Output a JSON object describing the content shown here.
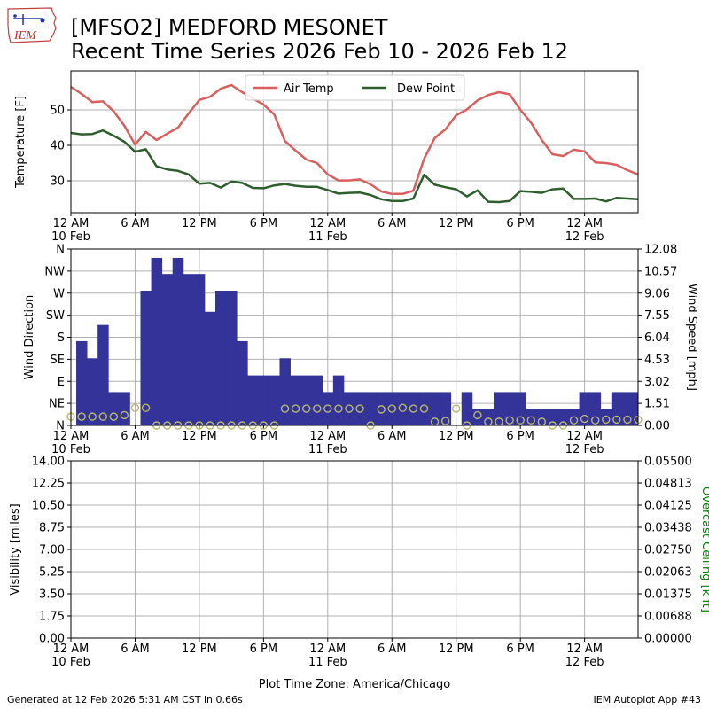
{
  "header": {
    "title_line1": "[MFSO2] MEDFORD MESONET",
    "title_line2": "Recent Time Series 2026 Feb 10 - 2026 Feb 12",
    "logo_text": "IEM"
  },
  "footer": {
    "generated": "Generated at 12 Feb 2026 5:31 AM CST in 0.66s",
    "app": "IEM Autoplot App #43"
  },
  "colors": {
    "air_temp": "#d95f5f",
    "dew_point": "#2e5e2e",
    "wind_dir": "#333399",
    "wind_speed_marker": "#b8b86a",
    "ceiling_axis": "#008000",
    "grid": "#b0b0b0"
  },
  "chart_data": [
    {
      "type": "line",
      "x_unit": "hours since 12 AM 10 Feb",
      "xlim": [
        0,
        53
      ],
      "x_ticks": [
        0,
        6,
        12,
        18,
        24,
        30,
        36,
        42,
        48
      ],
      "x_tick_labels": [
        {
          "line1": "12 AM",
          "line2": "10 Feb"
        },
        {
          "line1": "6 AM",
          "line2": ""
        },
        {
          "line1": "12 PM",
          "line2": ""
        },
        {
          "line1": "6 PM",
          "line2": ""
        },
        {
          "line1": "12 AM",
          "line2": "11 Feb"
        },
        {
          "line1": "6 AM",
          "line2": ""
        },
        {
          "line1": "12 PM",
          "line2": ""
        },
        {
          "line1": "6 PM",
          "line2": ""
        },
        {
          "line1": "12 AM",
          "line2": "12 Feb"
        }
      ],
      "ylabel": "Temperature [F]",
      "ylim": [
        21,
        61
      ],
      "y_ticks": [
        30,
        40,
        50
      ],
      "grid": true,
      "legend_placement": "top-center",
      "series": [
        {
          "name": "Air Temp",
          "color_key": "air_temp",
          "x": [
            0,
            1,
            2,
            3,
            4,
            5,
            6,
            7,
            8,
            9,
            10,
            11,
            12,
            13,
            14,
            15,
            16,
            17,
            18,
            19,
            20,
            21,
            22,
            23,
            24,
            25,
            26,
            27,
            28,
            29,
            30,
            31,
            32,
            33,
            34,
            35,
            36,
            37,
            38,
            39,
            40,
            41,
            42,
            43,
            44,
            45,
            46,
            47,
            48,
            49,
            50,
            51,
            52,
            53
          ],
          "values": [
            56.5,
            54.5,
            52.2,
            52.4,
            49.6,
            45.5,
            40.2,
            43.8,
            41.5,
            43.3,
            45.0,
            49.0,
            52.8,
            53.7,
            56.0,
            57.0,
            55.0,
            53.2,
            51.5,
            48.7,
            41.2,
            38.5,
            36.0,
            35.0,
            31.8,
            30.1,
            30.1,
            30.4,
            29.0,
            27.0,
            26.3,
            26.3,
            27.2,
            36.2,
            42.1,
            44.5,
            48.5,
            50.1,
            52.7,
            54.2,
            55.0,
            54.4,
            50.0,
            46.4,
            41.5,
            37.5,
            37.0,
            38.8,
            38.3,
            35.2,
            35.0,
            34.5,
            33.0,
            31.8
          ]
        },
        {
          "name": "Dew Point",
          "color_key": "dew_point",
          "x": [
            0,
            1,
            2,
            3,
            4,
            5,
            6,
            7,
            8,
            9,
            10,
            11,
            12,
            13,
            14,
            15,
            16,
            17,
            18,
            19,
            20,
            21,
            22,
            23,
            24,
            25,
            26,
            27,
            28,
            29,
            30,
            31,
            32,
            33,
            34,
            35,
            36,
            37,
            38,
            39,
            40,
            41,
            42,
            43,
            44,
            45,
            46,
            47,
            48,
            49,
            50,
            51,
            52,
            53
          ],
          "values": [
            43.5,
            43.1,
            43.2,
            44.2,
            42.7,
            41.0,
            38.2,
            38.9,
            34.1,
            33.2,
            32.8,
            31.8,
            29.2,
            29.4,
            28.1,
            29.8,
            29.4,
            28.0,
            27.9,
            28.7,
            29.1,
            28.6,
            28.3,
            28.3,
            27.4,
            26.4,
            26.6,
            26.7,
            26.0,
            24.8,
            24.3,
            24.3,
            25.0,
            31.7,
            28.9,
            28.2,
            27.6,
            25.6,
            27.3,
            24.1,
            24.0,
            24.3,
            27.1,
            26.9,
            26.6,
            27.6,
            27.8,
            24.9,
            24.9,
            25.0,
            24.2,
            25.2,
            25.0,
            24.8
          ]
        }
      ]
    },
    {
      "type": "bar",
      "x_unit": "hours since 12 AM 10 Feb",
      "xlim": [
        0,
        53
      ],
      "ylabel": "Wind Direction",
      "ylim": [
        0,
        360
      ],
      "y_tick_values": [
        0,
        45,
        90,
        135,
        180,
        225,
        270,
        315,
        360
      ],
      "y_tick_labels": [
        "N",
        "NE",
        "E",
        "SE",
        "S",
        "SW",
        "W",
        "NW",
        "N"
      ],
      "y2label": "Wind Speed [mph]",
      "y2lim": [
        0,
        12.08
      ],
      "y2_tick_labels": [
        "0.00",
        "1.51",
        "3.02",
        "4.53",
        "6.04",
        "7.55",
        "9.06",
        "10.57",
        "12.08"
      ],
      "grid": true,
      "direction_bars": {
        "name": "Wind Direction",
        "color_key": "wind_dir",
        "x_start": [
          0.5,
          1.5,
          2.5,
          3.5,
          5.5,
          6.5,
          7.5,
          8.5,
          9.5,
          10.5,
          11.5,
          12.5,
          13.5,
          14.5,
          15.5,
          16.5,
          17.5,
          18.5,
          19.5,
          20.5,
          21.5,
          22.5,
          23.5,
          24.5,
          25.5,
          26.5,
          27.5,
          28.5,
          29.5,
          30.5,
          31.5,
          32.5,
          33.5,
          34.5,
          35.5,
          36.5,
          37.5,
          38.5,
          39.5,
          40.5,
          41.5,
          42.5,
          43.5,
          44.5,
          45.5,
          46.5,
          47.5,
          48.5,
          49.5,
          50.5,
          51.5,
          52.5
        ],
        "x_end": [
          1.5,
          2.5,
          3.5,
          5.5,
          6.5,
          7.5,
          8.5,
          9.5,
          10.5,
          11.5,
          12.5,
          13.5,
          14.5,
          15.5,
          16.5,
          17.5,
          18.5,
          19.5,
          20.5,
          21.5,
          22.5,
          23.5,
          24.5,
          25.5,
          26.5,
          27.5,
          28.5,
          29.5,
          30.5,
          31.5,
          32.5,
          33.5,
          34.5,
          35.5,
          36.5,
          37.5,
          38.5,
          39.5,
          40.5,
          41.5,
          42.5,
          43.5,
          44.5,
          45.5,
          46.5,
          47.5,
          48.5,
          49.5,
          50.5,
          51.5,
          52.5,
          53.0
        ],
        "values": [
          172,
          137,
          205,
          68,
          0,
          275,
          342,
          309,
          342,
          309,
          309,
          232,
          275,
          275,
          172,
          102,
          102,
          102,
          137,
          102,
          102,
          102,
          68,
          102,
          68,
          68,
          68,
          68,
          68,
          68,
          68,
          68,
          68,
          68,
          0,
          68,
          34,
          34,
          68,
          68,
          68,
          34,
          34,
          34,
          34,
          34,
          68,
          68,
          34,
          68,
          68,
          68
        ]
      },
      "speed_markers": {
        "name": "Wind Speed",
        "color_key": "wind_speed_marker",
        "x": [
          0,
          1,
          2,
          3,
          4,
          5,
          6,
          7,
          8,
          9,
          10,
          11,
          12,
          13,
          14,
          15,
          16,
          17,
          18,
          19,
          20,
          21,
          22,
          23,
          24,
          25,
          26,
          27,
          28,
          29,
          30,
          31,
          32,
          33,
          34,
          35,
          36,
          37,
          38,
          39,
          40,
          41,
          42,
          43,
          44,
          45,
          46,
          47,
          48,
          49,
          50,
          51,
          52,
          53
        ],
        "values": [
          0.6,
          0.6,
          0.6,
          0.6,
          0.6,
          0.7,
          1.2,
          1.2,
          0.0,
          0.0,
          0.0,
          0.0,
          0.0,
          0.0,
          0.0,
          0.0,
          0.0,
          0.0,
          0.0,
          0.0,
          1.15,
          1.15,
          1.15,
          1.15,
          1.15,
          1.15,
          1.15,
          1.15,
          0.0,
          1.1,
          1.15,
          1.2,
          1.15,
          1.15,
          0.25,
          0.3,
          1.15,
          0.0,
          0.7,
          0.25,
          0.25,
          0.35,
          0.35,
          0.35,
          0.25,
          0.0,
          0.0,
          0.35,
          0.45,
          0.35,
          0.4,
          0.4,
          0.4,
          0.4
        ]
      }
    },
    {
      "type": "line",
      "x_unit": "hours since 12 AM 10 Feb",
      "xlim": [
        0,
        53
      ],
      "ylabel": "Visibility [miles]",
      "ylim": [
        0,
        14
      ],
      "y_tick_labels": [
        "0.00",
        "1.75",
        "3.50",
        "5.25",
        "7.00",
        "8.75",
        "10.50",
        "12.25",
        "14.00"
      ],
      "y2label": "Overcast Ceiling [k ft]",
      "y2lim": [
        0,
        0.055
      ],
      "y2_tick_labels": [
        "0.00000",
        "0.00688",
        "0.01375",
        "0.02063",
        "0.02750",
        "0.03438",
        "0.04125",
        "0.04813",
        "0.05500"
      ],
      "grid": true,
      "xlabel": "Plot Time Zone: America/Chicago",
      "series": []
    }
  ]
}
